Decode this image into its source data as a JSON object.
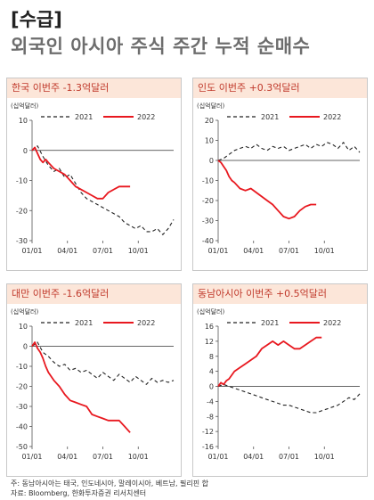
{
  "header": {
    "tag": "[수급]",
    "title": "외국인 아시아 주식 주간 누적 순매수"
  },
  "footnotes": [
    "주: 동남아시아는 태국, 인도네시아, 말레이시아, 베트남, 필리핀 합",
    "자료: Bloomberg, 한화투자증권 리서치센터"
  ],
  "colors": {
    "series_2021": "#222222",
    "series_2022": "#e8181f",
    "title_bg": "#fce6d9",
    "title_text": "#c0392b"
  },
  "chart_data": [
    {
      "type": "line",
      "title": "한국 이번주 -1.3억달러",
      "unit": "(십억달러)",
      "ylim": [
        -30,
        10
      ],
      "yticks": [
        10,
        0,
        -10,
        -20,
        -30
      ],
      "xticks": [
        "01/01",
        "04/01",
        "07/01",
        "10/01"
      ],
      "series": [
        {
          "name": "2021",
          "style": "dashed",
          "x": [
            0,
            2,
            4,
            6,
            8,
            10,
            12,
            14,
            16,
            18,
            20,
            22,
            24,
            26,
            28,
            30,
            32,
            34,
            36,
            38,
            40,
            42,
            44,
            46,
            48,
            50,
            52
          ],
          "values": [
            0,
            1.5,
            -2,
            -5,
            -7,
            -6,
            -9,
            -8,
            -11,
            -14,
            -16,
            -17,
            -18,
            -19,
            -20,
            -21,
            -22,
            -24,
            -25,
            -26,
            -25,
            -27,
            -27,
            -26,
            -28,
            -26,
            -23
          ]
        },
        {
          "name": "2022",
          "style": "solid",
          "x": [
            0,
            1,
            2,
            3,
            4,
            5,
            6,
            8,
            10,
            12,
            14,
            16,
            18,
            20,
            22,
            24,
            26,
            28,
            30,
            32,
            34,
            36
          ],
          "values": [
            0,
            1,
            -1,
            -3,
            -4,
            -3,
            -4,
            -6,
            -7,
            -8,
            -10,
            -12,
            -13,
            -14,
            -15,
            -16,
            -16,
            -14,
            -13,
            -12,
            -12,
            -12
          ]
        }
      ]
    },
    {
      "type": "line",
      "title": "인도 이번주 +0.3억달러",
      "unit": "(십억달러)",
      "ylim": [
        -40,
        20
      ],
      "yticks": [
        20,
        10,
        0,
        -10,
        -20,
        -30,
        -40
      ],
      "xticks": [
        "01/01",
        "04/01",
        "07/01",
        "10/01"
      ],
      "series": [
        {
          "name": "2021",
          "style": "dashed",
          "x": [
            0,
            2,
            4,
            6,
            8,
            10,
            12,
            14,
            16,
            18,
            20,
            22,
            24,
            26,
            28,
            30,
            32,
            34,
            36,
            38,
            40,
            42,
            44,
            46,
            48,
            50,
            52
          ],
          "values": [
            0,
            1,
            3,
            5,
            6,
            7,
            6,
            8,
            6,
            5,
            7,
            6,
            7,
            5,
            6,
            7,
            8,
            6,
            8,
            7,
            9,
            8,
            6,
            9,
            5,
            7,
            4
          ]
        },
        {
          "name": "2022",
          "style": "solid",
          "x": [
            0,
            1,
            2,
            3,
            4,
            5,
            6,
            8,
            10,
            12,
            14,
            16,
            18,
            20,
            22,
            24,
            26,
            28,
            30,
            32,
            34,
            36
          ],
          "values": [
            0,
            -1,
            -3,
            -5,
            -8,
            -10,
            -11,
            -14,
            -15,
            -14,
            -16,
            -18,
            -20,
            -22,
            -25,
            -28,
            -29,
            -28,
            -25,
            -23,
            -22,
            -22
          ]
        }
      ]
    },
    {
      "type": "line",
      "title": "대만 이번주 -1.6억달러",
      "unit": "(십억달러)",
      "ylim": [
        -50,
        10
      ],
      "yticks": [
        10,
        0,
        -10,
        -20,
        -30,
        -40,
        -50
      ],
      "xticks": [
        "01/01",
        "04/01",
        "07/01",
        "10/01"
      ],
      "series": [
        {
          "name": "2021",
          "style": "dashed",
          "x": [
            0,
            2,
            4,
            6,
            8,
            10,
            12,
            14,
            16,
            18,
            20,
            22,
            24,
            26,
            28,
            30,
            32,
            34,
            36,
            38,
            40,
            42,
            44,
            46,
            48,
            50,
            52
          ],
          "values": [
            0,
            2,
            -3,
            -5,
            -8,
            -10,
            -9,
            -12,
            -11,
            -13,
            -12,
            -14,
            -16,
            -13,
            -15,
            -17,
            -14,
            -16,
            -18,
            -15,
            -17,
            -19,
            -16,
            -18,
            -17,
            -18,
            -17
          ]
        },
        {
          "name": "2022",
          "style": "solid",
          "x": [
            0,
            1,
            2,
            3,
            4,
            5,
            6,
            8,
            10,
            12,
            14,
            16,
            18,
            20,
            22,
            24,
            26,
            28,
            30,
            32,
            34,
            36
          ],
          "values": [
            0,
            2,
            -1,
            -3,
            -6,
            -10,
            -13,
            -17,
            -20,
            -24,
            -27,
            -28,
            -29,
            -30,
            -34,
            -35,
            -36,
            -37,
            -37,
            -37,
            -40,
            -43
          ]
        }
      ]
    },
    {
      "type": "line",
      "title": "동남아시아 이번주 +0.5억달러",
      "unit": "(십억달러)",
      "ylim": [
        -16,
        16
      ],
      "yticks": [
        16,
        12,
        8,
        4,
        0,
        -4,
        -8,
        -12,
        -16
      ],
      "xticks": [
        "01/01",
        "04/01",
        "07/01",
        "10/01"
      ],
      "series": [
        {
          "name": "2021",
          "style": "dashed",
          "x": [
            0,
            2,
            4,
            6,
            8,
            10,
            12,
            14,
            16,
            18,
            20,
            22,
            24,
            26,
            28,
            30,
            32,
            34,
            36,
            38,
            40,
            42,
            44,
            46,
            48,
            50,
            52
          ],
          "values": [
            0,
            0.5,
            0,
            -0.5,
            -1,
            -1.5,
            -2,
            -2.5,
            -3,
            -3.5,
            -4,
            -4.5,
            -5,
            -5,
            -5.5,
            -6,
            -6.5,
            -7,
            -7,
            -6.5,
            -6,
            -5.5,
            -5,
            -4,
            -3,
            -3.5,
            -2
          ]
        },
        {
          "name": "2022",
          "style": "solid",
          "x": [
            0,
            1,
            2,
            3,
            4,
            6,
            8,
            10,
            12,
            14,
            16,
            18,
            20,
            22,
            24,
            26,
            28,
            30,
            32,
            34,
            36,
            38
          ],
          "values": [
            0,
            1,
            0.5,
            1.5,
            2,
            4,
            5,
            6,
            7,
            8,
            10,
            11,
            12,
            11,
            12,
            11,
            10,
            10,
            11,
            12,
            13,
            13
          ]
        }
      ]
    }
  ]
}
